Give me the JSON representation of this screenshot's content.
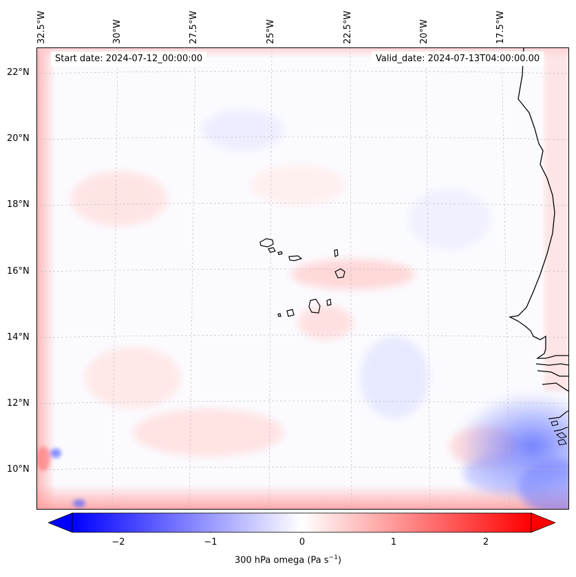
{
  "map": {
    "start_date": "Start date: 2024-07-12_00:00:00",
    "valid_date": "Valid_date: 2024-07-13T04:00:00.00",
    "lat_labels": [
      "22°N",
      "20°N",
      "18°N",
      "16°N",
      "14°N",
      "12°N",
      "10°N"
    ],
    "lon_labels": [
      "32.5°W",
      "30°W",
      "27.5°W",
      "25°W",
      "22.5°W",
      "20°W",
      "17.5°W"
    ],
    "colors": {
      "negative": "#0000ff",
      "positive": "#ff0000",
      "neutral": "#ffffff",
      "coast": "#000000"
    }
  },
  "colorbar": {
    "ticks": [
      "−2",
      "−1",
      "0",
      "1",
      "2"
    ],
    "label": "300 hPa omega (Pa s",
    "label_exp": "−1",
    "label_end": ")"
  }
}
